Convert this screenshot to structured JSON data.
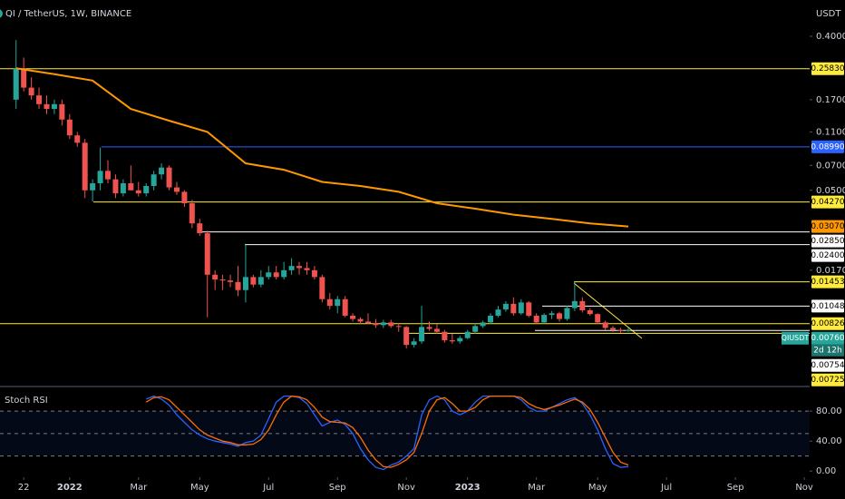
{
  "chart_data": {
    "type": "candlestick",
    "title": "QI / TetherUS, 1W, BINANCE",
    "currency": "USDT",
    "log": true,
    "ylim": [
      0.00358,
      0.653
    ],
    "yticks": [
      {
        "value": 0.4,
        "label": "0.40000"
      },
      {
        "value": 0.17,
        "label": "0.17000"
      },
      {
        "value": 0.11,
        "label": "0.11000"
      },
      {
        "value": 0.07,
        "label": "0.07000"
      },
      {
        "value": 0.05,
        "label": "0.05000"
      },
      {
        "value": 0.017,
        "label": "0.01700"
      }
    ],
    "xlim": [
      -2.1,
      103.7
    ],
    "xticks": [
      {
        "value": 1,
        "label": "22"
      },
      {
        "value": 7,
        "label": "2022"
      },
      {
        "value": 16,
        "label": "Mar"
      },
      {
        "value": 24,
        "label": "May"
      },
      {
        "value": 33,
        "label": "Jul"
      },
      {
        "value": 42,
        "label": "Sep"
      },
      {
        "value": 51,
        "label": "Nov"
      },
      {
        "value": 59,
        "label": "2023"
      },
      {
        "value": 68,
        "label": "Mar"
      },
      {
        "value": 76,
        "label": "May"
      },
      {
        "value": 85,
        "label": "Jul"
      },
      {
        "value": 94,
        "label": "Sep"
      },
      {
        "value": 103,
        "label": "Nov"
      }
    ],
    "up_color": "#26a69a",
    "down_color": "#ef5350",
    "ohlc": [
      [
        0.17,
        0.38,
        0.15,
        0.26
      ],
      [
        0.26,
        0.3,
        0.19,
        0.2
      ],
      [
        0.2,
        0.23,
        0.17,
        0.18
      ],
      [
        0.18,
        0.2,
        0.15,
        0.16
      ],
      [
        0.16,
        0.18,
        0.14,
        0.15
      ],
      [
        0.15,
        0.17,
        0.14,
        0.16
      ],
      [
        0.16,
        0.17,
        0.12,
        0.13
      ],
      [
        0.13,
        0.14,
        0.1,
        0.105
      ],
      [
        0.105,
        0.11,
        0.09,
        0.095
      ],
      [
        0.095,
        0.1,
        0.045,
        0.05
      ],
      [
        0.05,
        0.058,
        0.043,
        0.055
      ],
      [
        0.055,
        0.089,
        0.05,
        0.065
      ],
      [
        0.065,
        0.075,
        0.055,
        0.058
      ],
      [
        0.058,
        0.062,
        0.045,
        0.048
      ],
      [
        0.048,
        0.058,
        0.046,
        0.055
      ],
      [
        0.055,
        0.07,
        0.05,
        0.05
      ],
      [
        0.05,
        0.056,
        0.046,
        0.048
      ],
      [
        0.048,
        0.055,
        0.046,
        0.053
      ],
      [
        0.053,
        0.065,
        0.05,
        0.062
      ],
      [
        0.062,
        0.072,
        0.058,
        0.068
      ],
      [
        0.068,
        0.07,
        0.05,
        0.052
      ],
      [
        0.052,
        0.056,
        0.047,
        0.049
      ],
      [
        0.049,
        0.05,
        0.04,
        0.042
      ],
      [
        0.042,
        0.044,
        0.03,
        0.032
      ],
      [
        0.032,
        0.034,
        0.027,
        0.028
      ],
      [
        0.028,
        0.029,
        0.009,
        0.016
      ],
      [
        0.016,
        0.017,
        0.013,
        0.015
      ],
      [
        0.015,
        0.016,
        0.013,
        0.0148
      ],
      [
        0.0148,
        0.016,
        0.0135,
        0.0145
      ],
      [
        0.0145,
        0.018,
        0.012,
        0.013
      ],
      [
        0.013,
        0.024,
        0.011,
        0.0155
      ],
      [
        0.0155,
        0.016,
        0.0135,
        0.014
      ],
      [
        0.014,
        0.017,
        0.0135,
        0.0155
      ],
      [
        0.0155,
        0.018,
        0.015,
        0.0165
      ],
      [
        0.0165,
        0.018,
        0.015,
        0.0155
      ],
      [
        0.0155,
        0.019,
        0.015,
        0.017
      ],
      [
        0.017,
        0.02,
        0.016,
        0.018
      ],
      [
        0.018,
        0.019,
        0.016,
        0.0175
      ],
      [
        0.0175,
        0.019,
        0.016,
        0.017
      ],
      [
        0.017,
        0.018,
        0.015,
        0.0155
      ],
      [
        0.0155,
        0.016,
        0.011,
        0.0115
      ],
      [
        0.0115,
        0.0125,
        0.01,
        0.0105
      ],
      [
        0.0105,
        0.012,
        0.0095,
        0.0115
      ],
      [
        0.0115,
        0.012,
        0.009,
        0.0092
      ],
      [
        0.0092,
        0.0095,
        0.0085,
        0.0088
      ],
      [
        0.0088,
        0.009,
        0.0082,
        0.0085
      ],
      [
        0.0085,
        0.0095,
        0.0082,
        0.0083
      ],
      [
        0.0083,
        0.0088,
        0.0078,
        0.0081
      ],
      [
        0.0081,
        0.0087,
        0.0078,
        0.0084
      ],
      [
        0.0084,
        0.0087,
        0.0078,
        0.008
      ],
      [
        0.008,
        0.0083,
        0.0074,
        0.0079
      ],
      [
        0.0079,
        0.008,
        0.0059,
        0.0062
      ],
      [
        0.0062,
        0.0068,
        0.006,
        0.0065
      ],
      [
        0.0065,
        0.0105,
        0.0063,
        0.0079
      ],
      [
        0.0079,
        0.0085,
        0.0075,
        0.0077
      ],
      [
        0.0077,
        0.0082,
        0.0072,
        0.0074
      ],
      [
        0.0074,
        0.0076,
        0.0064,
        0.0066
      ],
      [
        0.0066,
        0.0072,
        0.0063,
        0.0065
      ],
      [
        0.0065,
        0.007,
        0.0063,
        0.0068
      ],
      [
        0.0068,
        0.0076,
        0.0067,
        0.0074
      ],
      [
        0.0074,
        0.0083,
        0.0072,
        0.008
      ],
      [
        0.008,
        0.0086,
        0.0078,
        0.0084
      ],
      [
        0.0084,
        0.0095,
        0.0082,
        0.0092
      ],
      [
        0.0092,
        0.0105,
        0.009,
        0.01
      ],
      [
        0.01,
        0.0112,
        0.0097,
        0.0108
      ],
      [
        0.0108,
        0.0118,
        0.0092,
        0.0095
      ],
      [
        0.0095,
        0.0115,
        0.0093,
        0.011
      ],
      [
        0.011,
        0.0112,
        0.009,
        0.0092
      ],
      [
        0.0092,
        0.0095,
        0.0082,
        0.0084
      ],
      [
        0.0084,
        0.0095,
        0.0082,
        0.0093
      ],
      [
        0.0093,
        0.0098,
        0.0088,
        0.0095
      ],
      [
        0.0095,
        0.0097,
        0.0085,
        0.0088
      ],
      [
        0.0088,
        0.0105,
        0.0086,
        0.0102
      ],
      [
        0.0102,
        0.0145,
        0.0098,
        0.0112
      ],
      [
        0.0112,
        0.0118,
        0.0096,
        0.0099
      ],
      [
        0.0099,
        0.0102,
        0.0092,
        0.0094
      ],
      [
        0.0094,
        0.0095,
        0.0082,
        0.0084
      ],
      [
        0.0084,
        0.0086,
        0.0076,
        0.0078
      ],
      [
        0.0078,
        0.008,
        0.0074,
        0.0076
      ],
      [
        0.0076,
        0.0078,
        0.0073,
        0.0075
      ],
      [
        0.0075,
        0.0078,
        0.0074,
        0.0076
      ]
    ],
    "ma": {
      "color": "#ff9800",
      "x": [
        0,
        5,
        10,
        15,
        20,
        25,
        30,
        35,
        40,
        45,
        50,
        55,
        60,
        65,
        70,
        75,
        80
      ],
      "values": [
        0.26,
        0.24,
        0.22,
        0.15,
        0.128,
        0.11,
        0.072,
        0.066,
        0.056,
        0.053,
        0.049,
        0.042,
        0.039,
        0.036,
        0.034,
        0.032,
        0.0307
      ],
      "value_label": "0.03070"
    },
    "price_lines": [
      {
        "value": 0.2583,
        "label": "0.25830",
        "color": "#ffeb3b"
      },
      {
        "value": 0.0899,
        "label": "0.08990",
        "color": "#2962ff"
      },
      {
        "value": 0.0427,
        "label": "0.04270",
        "color": "#ffeb3b"
      },
      {
        "value": 0.0285,
        "label": "0.02850",
        "color": "#ffffff"
      },
      {
        "value": 0.024,
        "label": "0.02400",
        "color": "#ffffff"
      },
      {
        "value": 0.01453,
        "label": "0.01453",
        "color": "#ffeb3b"
      },
      {
        "value": 0.01048,
        "label": "0.01048",
        "color": "#ffffff"
      },
      {
        "value": 0.00826,
        "label": "0.00826",
        "color": "#ffeb3b"
      },
      {
        "value": 0.00754,
        "label": "0.00754",
        "color": "#ffffff"
      },
      {
        "value": 0.00725,
        "label": "0.00725",
        "color": "#ffeb3b"
      }
    ],
    "symbol": "QIUSDT",
    "last_price": {
      "value": 0.0076,
      "label": "0.00760"
    },
    "countdown": "2d 12h",
    "indicator": {
      "title": "Stoch RSI",
      "ylim": [
        -7,
        114
      ],
      "yticks": [
        {
          "value": 80,
          "label": "80.00"
        },
        {
          "value": 40,
          "label": "40.00"
        },
        {
          "value": 0,
          "label": "0.00"
        }
      ],
      "levels": [
        80,
        50,
        20
      ],
      "series": [
        {
          "color": "#2962ff",
          "x": [
            17,
            18,
            19,
            20,
            21,
            22,
            23,
            24,
            25,
            26,
            27,
            28,
            29,
            30,
            31,
            32,
            33,
            34,
            35,
            36,
            37,
            38,
            39,
            40,
            41,
            42,
            43,
            44,
            45,
            46,
            47,
            48,
            49,
            50,
            51,
            52,
            53,
            54,
            55,
            56,
            57,
            58,
            59,
            60,
            61,
            62,
            63,
            64,
            65,
            66,
            67,
            68,
            69,
            70,
            71,
            72,
            73,
            74,
            75,
            76,
            77,
            78,
            79,
            80
          ],
          "values": [
            96,
            100,
            96,
            88,
            75,
            65,
            55,
            48,
            43,
            40,
            38,
            36,
            33,
            38,
            40,
            48,
            70,
            92,
            100,
            100,
            98,
            90,
            75,
            60,
            65,
            68,
            62,
            50,
            30,
            15,
            5,
            2,
            8,
            12,
            20,
            30,
            75,
            95,
            100,
            95,
            80,
            75,
            80,
            92,
            100,
            100,
            100,
            100,
            100,
            95,
            85,
            80,
            80,
            85,
            90,
            95,
            98,
            90,
            75,
            55,
            30,
            10,
            5,
            6
          ]
        },
        {
          "color": "#ff6d00",
          "x": [
            17,
            18,
            19,
            20,
            21,
            22,
            23,
            24,
            25,
            26,
            27,
            28,
            29,
            30,
            31,
            32,
            33,
            34,
            35,
            36,
            37,
            38,
            39,
            40,
            41,
            42,
            43,
            44,
            45,
            46,
            47,
            48,
            49,
            50,
            51,
            52,
            53,
            54,
            55,
            56,
            57,
            58,
            59,
            60,
            61,
            62,
            63,
            64,
            65,
            66,
            67,
            68,
            69,
            70,
            71,
            72,
            73,
            74,
            75,
            76,
            77,
            78,
            79,
            80
          ],
          "values": [
            92,
            98,
            99,
            95,
            85,
            75,
            65,
            55,
            48,
            44,
            40,
            38,
            35,
            35,
            36,
            42,
            55,
            75,
            92,
            100,
            99,
            95,
            85,
            72,
            66,
            65,
            64,
            58,
            45,
            28,
            15,
            6,
            5,
            9,
            15,
            25,
            50,
            80,
            95,
            98,
            90,
            80,
            80,
            85,
            95,
            100,
            100,
            100,
            100,
            98,
            90,
            85,
            82,
            85,
            88,
            92,
            96,
            92,
            82,
            65,
            45,
            25,
            12,
            8
          ]
        }
      ]
    }
  }
}
